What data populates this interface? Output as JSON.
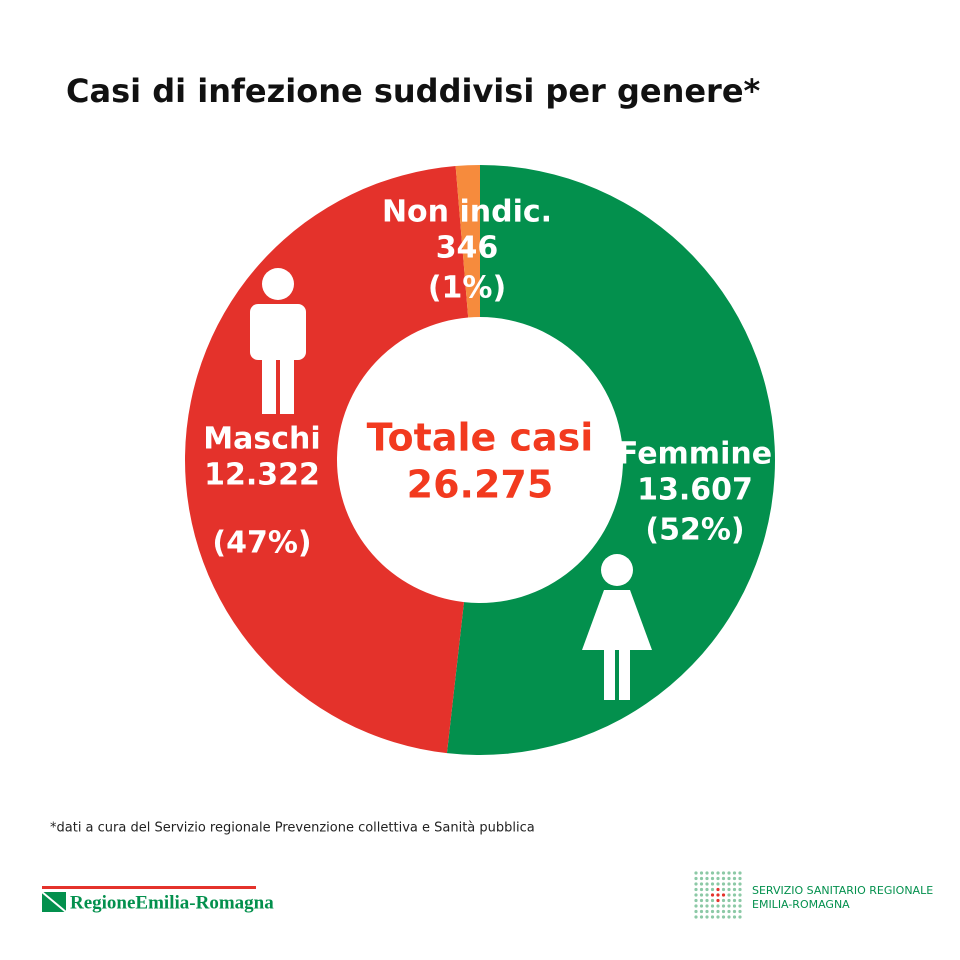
{
  "chart_data": {
    "type": "donut",
    "title": "Casi di infezione suddivisi per genere*",
    "categories": [
      "Femmine",
      "Maschi",
      "Non indic."
    ],
    "values": [
      13607,
      12322,
      346
    ],
    "value_labels": [
      "13.607",
      "12.322",
      "346"
    ],
    "percents": [
      {
        "value": 52,
        "label": "(52%)"
      },
      {
        "value": 47,
        "label": "(47%)"
      },
      {
        "value": 1,
        "label": "(1%)"
      }
    ],
    "colors": [
      "#03904d",
      "#e4322b",
      "#f68b3d"
    ],
    "center_title": "Totale casi",
    "total": {
      "value": 26275,
      "label": "26.275"
    }
  },
  "footer": {
    "note": "*dati a cura del Servizio regionale Prevenzione collettiva e Sanità pubblica",
    "left_logo": "RegioneEmilia-Romagna",
    "right_logo": [
      "SERVIZIO SANITARIO REGIONALE",
      "EMILIA-ROMAGNA"
    ]
  }
}
